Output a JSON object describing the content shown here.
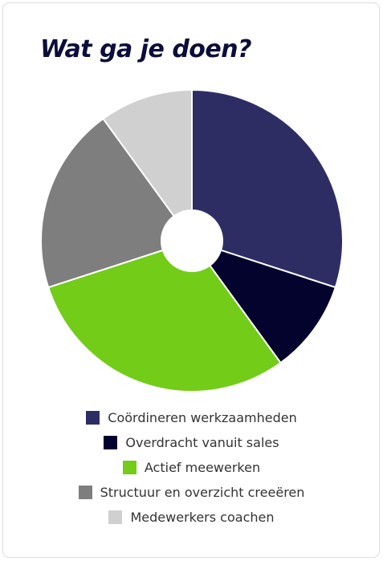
{
  "title": "Wat ga je doen?",
  "chart_data": {
    "type": "pie",
    "title": "Wat ga je doen?",
    "donut_hole": true,
    "legend_position": "bottom",
    "slices": [
      {
        "label": "Coördineren werkzaamheden",
        "value": 30,
        "color": "#2e2d63"
      },
      {
        "label": "Overdracht vanuit sales",
        "value": 10,
        "color": "#03032e"
      },
      {
        "label": "Actief meewerken",
        "value": 30,
        "color": "#72cc18"
      },
      {
        "label": "Structuur en overzicht creeëren",
        "value": 20,
        "color": "#7f7e7f"
      },
      {
        "label": "Medewerkers coachen",
        "value": 10,
        "color": "#d1d0d0"
      }
    ]
  }
}
